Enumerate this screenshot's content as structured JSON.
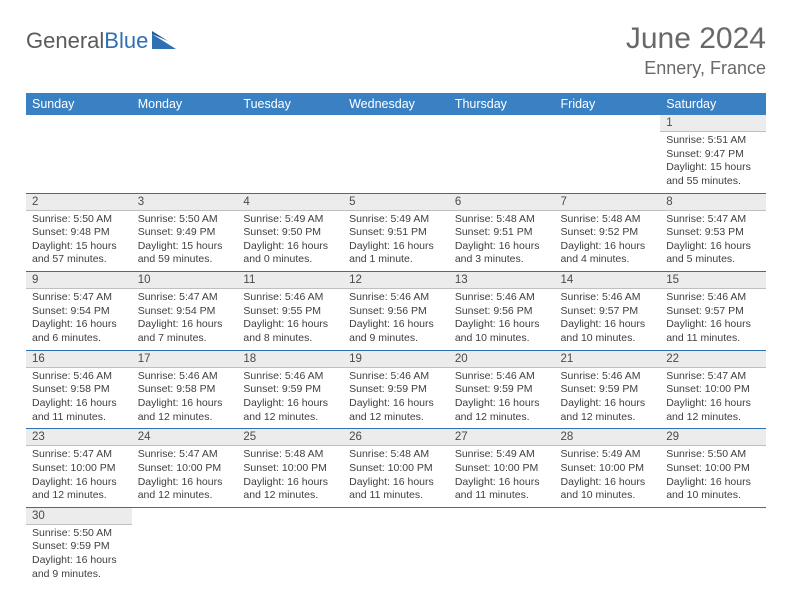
{
  "brand": {
    "part1": "General",
    "part2": "Blue"
  },
  "title": "June 2024",
  "location": "Ennery, France",
  "colors": {
    "header_bg": "#3a81c4",
    "header_fg": "#ffffff",
    "daynum_bg": "#ececec",
    "week_divider": "#2f6fb3",
    "text": "#3f3f3f",
    "title_color": "#686868"
  },
  "weekdays": [
    "Sunday",
    "Monday",
    "Tuesday",
    "Wednesday",
    "Thursday",
    "Friday",
    "Saturday"
  ],
  "weeks": [
    [
      null,
      null,
      null,
      null,
      null,
      null,
      {
        "n": "1",
        "sr": "Sunrise: 5:51 AM",
        "ss": "Sunset: 9:47 PM",
        "d1": "Daylight: 15 hours",
        "d2": "and 55 minutes."
      }
    ],
    [
      {
        "n": "2",
        "sr": "Sunrise: 5:50 AM",
        "ss": "Sunset: 9:48 PM",
        "d1": "Daylight: 15 hours",
        "d2": "and 57 minutes."
      },
      {
        "n": "3",
        "sr": "Sunrise: 5:50 AM",
        "ss": "Sunset: 9:49 PM",
        "d1": "Daylight: 15 hours",
        "d2": "and 59 minutes."
      },
      {
        "n": "4",
        "sr": "Sunrise: 5:49 AM",
        "ss": "Sunset: 9:50 PM",
        "d1": "Daylight: 16 hours",
        "d2": "and 0 minutes."
      },
      {
        "n": "5",
        "sr": "Sunrise: 5:49 AM",
        "ss": "Sunset: 9:51 PM",
        "d1": "Daylight: 16 hours",
        "d2": "and 1 minute."
      },
      {
        "n": "6",
        "sr": "Sunrise: 5:48 AM",
        "ss": "Sunset: 9:51 PM",
        "d1": "Daylight: 16 hours",
        "d2": "and 3 minutes."
      },
      {
        "n": "7",
        "sr": "Sunrise: 5:48 AM",
        "ss": "Sunset: 9:52 PM",
        "d1": "Daylight: 16 hours",
        "d2": "and 4 minutes."
      },
      {
        "n": "8",
        "sr": "Sunrise: 5:47 AM",
        "ss": "Sunset: 9:53 PM",
        "d1": "Daylight: 16 hours",
        "d2": "and 5 minutes."
      }
    ],
    [
      {
        "n": "9",
        "sr": "Sunrise: 5:47 AM",
        "ss": "Sunset: 9:54 PM",
        "d1": "Daylight: 16 hours",
        "d2": "and 6 minutes."
      },
      {
        "n": "10",
        "sr": "Sunrise: 5:47 AM",
        "ss": "Sunset: 9:54 PM",
        "d1": "Daylight: 16 hours",
        "d2": "and 7 minutes."
      },
      {
        "n": "11",
        "sr": "Sunrise: 5:46 AM",
        "ss": "Sunset: 9:55 PM",
        "d1": "Daylight: 16 hours",
        "d2": "and 8 minutes."
      },
      {
        "n": "12",
        "sr": "Sunrise: 5:46 AM",
        "ss": "Sunset: 9:56 PM",
        "d1": "Daylight: 16 hours",
        "d2": "and 9 minutes."
      },
      {
        "n": "13",
        "sr": "Sunrise: 5:46 AM",
        "ss": "Sunset: 9:56 PM",
        "d1": "Daylight: 16 hours",
        "d2": "and 10 minutes."
      },
      {
        "n": "14",
        "sr": "Sunrise: 5:46 AM",
        "ss": "Sunset: 9:57 PM",
        "d1": "Daylight: 16 hours",
        "d2": "and 10 minutes."
      },
      {
        "n": "15",
        "sr": "Sunrise: 5:46 AM",
        "ss": "Sunset: 9:57 PM",
        "d1": "Daylight: 16 hours",
        "d2": "and 11 minutes."
      }
    ],
    [
      {
        "n": "16",
        "sr": "Sunrise: 5:46 AM",
        "ss": "Sunset: 9:58 PM",
        "d1": "Daylight: 16 hours",
        "d2": "and 11 minutes."
      },
      {
        "n": "17",
        "sr": "Sunrise: 5:46 AM",
        "ss": "Sunset: 9:58 PM",
        "d1": "Daylight: 16 hours",
        "d2": "and 12 minutes."
      },
      {
        "n": "18",
        "sr": "Sunrise: 5:46 AM",
        "ss": "Sunset: 9:59 PM",
        "d1": "Daylight: 16 hours",
        "d2": "and 12 minutes."
      },
      {
        "n": "19",
        "sr": "Sunrise: 5:46 AM",
        "ss": "Sunset: 9:59 PM",
        "d1": "Daylight: 16 hours",
        "d2": "and 12 minutes."
      },
      {
        "n": "20",
        "sr": "Sunrise: 5:46 AM",
        "ss": "Sunset: 9:59 PM",
        "d1": "Daylight: 16 hours",
        "d2": "and 12 minutes."
      },
      {
        "n": "21",
        "sr": "Sunrise: 5:46 AM",
        "ss": "Sunset: 9:59 PM",
        "d1": "Daylight: 16 hours",
        "d2": "and 12 minutes."
      },
      {
        "n": "22",
        "sr": "Sunrise: 5:47 AM",
        "ss": "Sunset: 10:00 PM",
        "d1": "Daylight: 16 hours",
        "d2": "and 12 minutes."
      }
    ],
    [
      {
        "n": "23",
        "sr": "Sunrise: 5:47 AM",
        "ss": "Sunset: 10:00 PM",
        "d1": "Daylight: 16 hours",
        "d2": "and 12 minutes."
      },
      {
        "n": "24",
        "sr": "Sunrise: 5:47 AM",
        "ss": "Sunset: 10:00 PM",
        "d1": "Daylight: 16 hours",
        "d2": "and 12 minutes."
      },
      {
        "n": "25",
        "sr": "Sunrise: 5:48 AM",
        "ss": "Sunset: 10:00 PM",
        "d1": "Daylight: 16 hours",
        "d2": "and 12 minutes."
      },
      {
        "n": "26",
        "sr": "Sunrise: 5:48 AM",
        "ss": "Sunset: 10:00 PM",
        "d1": "Daylight: 16 hours",
        "d2": "and 11 minutes."
      },
      {
        "n": "27",
        "sr": "Sunrise: 5:49 AM",
        "ss": "Sunset: 10:00 PM",
        "d1": "Daylight: 16 hours",
        "d2": "and 11 minutes."
      },
      {
        "n": "28",
        "sr": "Sunrise: 5:49 AM",
        "ss": "Sunset: 10:00 PM",
        "d1": "Daylight: 16 hours",
        "d2": "and 10 minutes."
      },
      {
        "n": "29",
        "sr": "Sunrise: 5:50 AM",
        "ss": "Sunset: 10:00 PM",
        "d1": "Daylight: 16 hours",
        "d2": "and 10 minutes."
      }
    ],
    [
      {
        "n": "30",
        "sr": "Sunrise: 5:50 AM",
        "ss": "Sunset: 9:59 PM",
        "d1": "Daylight: 16 hours",
        "d2": "and 9 minutes."
      },
      null,
      null,
      null,
      null,
      null,
      null
    ]
  ]
}
